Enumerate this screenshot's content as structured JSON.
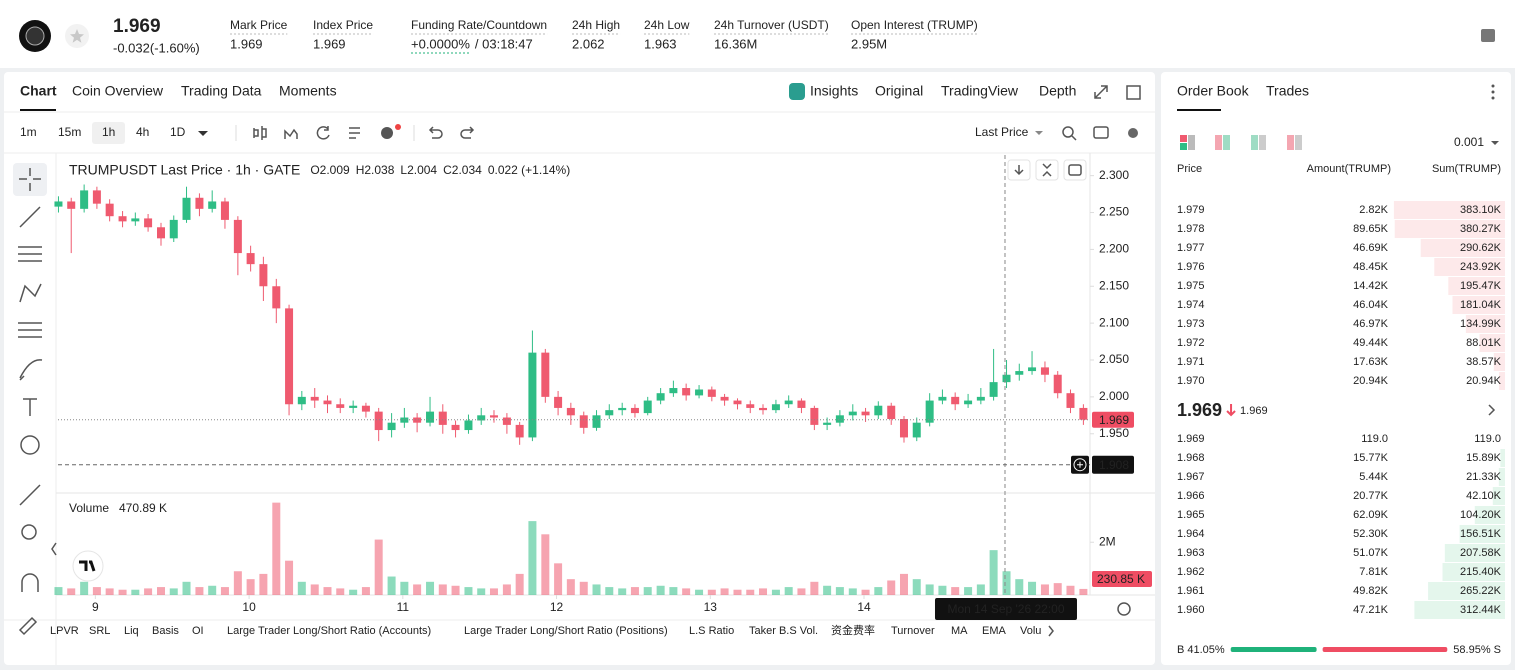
{
  "header": {
    "last_price": "1.969",
    "change": "-0.032(-1.60%)",
    "stats": [
      {
        "label": "Mark Price",
        "value": "1.969"
      },
      {
        "label": "Index Price",
        "value": "1.969"
      },
      {
        "label": "Funding Rate/Countdown",
        "value": "+0.0000%",
        "countdown": "/ 03:18:47"
      },
      {
        "label": "24h High",
        "value": "2.062"
      },
      {
        "label": "24h Low",
        "value": "1.963"
      },
      {
        "label": "24h Turnover (USDT)",
        "value": "16.36M"
      },
      {
        "label": "Open Interest (TRUMP)",
        "value": "2.95M"
      }
    ]
  },
  "tabs": [
    "Chart",
    "Coin Overview",
    "Trading Data",
    "Moments"
  ],
  "view_tabs": [
    "Insights",
    "Original",
    "TradingView",
    "Depth"
  ],
  "intervals": [
    "1m",
    "15m",
    "1h",
    "4h",
    "1D"
  ],
  "price_source": "Last Price",
  "indicators": [
    "LPVR",
    "SRL",
    "Liq",
    "Basis",
    "OI",
    "Large Trader Long/Short Ratio (Accounts)",
    "Large Trader Long/Short Ratio (Positions)",
    "L.S Ratio",
    "Taker B.S Vol.",
    "资金费率",
    "Turnover",
    "MA",
    "EMA",
    "Volu"
  ],
  "chart_data": {
    "type": "candlestick",
    "title": "TRUMPUSDT Last Price · 1h · GATE",
    "legend": [
      {
        "key": "O",
        "value": "2.009"
      },
      {
        "key": "H",
        "value": "2.038"
      },
      {
        "key": "L",
        "value": "2.004"
      },
      {
        "key": "C",
        "value": "2.034"
      }
    ],
    "legend_change": "0.022 (+1.14%)",
    "up_color": "#2ebd85",
    "down_color": "#ef5a6f",
    "x": [
      8.76,
      8.843,
      8.927,
      9.01,
      9.093,
      9.177,
      9.26,
      9.343,
      9.427,
      9.51,
      9.593,
      9.677,
      9.76,
      9.843,
      9.927,
      10.01,
      10.093,
      10.177,
      10.26,
      10.343,
      10.427,
      10.51,
      10.593,
      10.677,
      10.76,
      10.843,
      10.927,
      11.01,
      11.093,
      11.177,
      11.26,
      11.343,
      11.427,
      11.51,
      11.593,
      11.677,
      11.76,
      11.843,
      11.927,
      12.01,
      12.093,
      12.177,
      12.26,
      12.343,
      12.427,
      12.51,
      12.593,
      12.677,
      12.76,
      12.843,
      12.927,
      13.01,
      13.093,
      13.177,
      13.26,
      13.343,
      13.427,
      13.51,
      13.593,
      13.677,
      13.76,
      13.843,
      13.927,
      14.01,
      14.093,
      14.177,
      14.26,
      14.343,
      14.427,
      14.51,
      14.593,
      14.677,
      14.76,
      14.843,
      14.927,
      15.01,
      15.093,
      15.177,
      15.26,
      15.343,
      15.427
    ],
    "open": [
      2.258,
      2.265,
      2.255,
      2.28,
      2.262,
      2.245,
      2.238,
      2.242,
      2.23,
      2.215,
      2.24,
      2.27,
      2.255,
      2.265,
      2.24,
      2.195,
      2.18,
      2.15,
      2.12,
      1.99,
      2.0,
      1.995,
      1.99,
      1.985,
      1.988,
      1.98,
      1.955,
      1.965,
      1.972,
      1.965,
      1.98,
      1.962,
      1.955,
      1.968,
      1.975,
      1.972,
      1.962,
      1.945,
      2.06,
      2.0,
      1.985,
      1.975,
      1.958,
      1.975,
      1.982,
      1.985,
      1.978,
      1.995,
      2.005,
      2.012,
      2.002,
      2.01,
      2.0,
      1.995,
      1.99,
      1.985,
      1.982,
      1.99,
      1.995,
      1.985,
      1.962,
      1.965,
      1.975,
      1.98,
      1.975,
      1.988,
      1.97,
      1.945,
      1.965,
      1.995,
      2.0,
      1.99,
      1.995,
      2.0,
      2.02,
      2.03,
      2.035,
      2.04,
      2.03,
      2.005,
      1.985
    ],
    "high": [
      2.272,
      2.27,
      2.288,
      2.285,
      2.268,
      2.252,
      2.25,
      2.248,
      2.236,
      2.246,
      2.285,
      2.276,
      2.28,
      2.27,
      2.245,
      2.205,
      2.19,
      2.16,
      2.125,
      2.008,
      2.012,
      2.002,
      1.998,
      1.995,
      1.992,
      1.985,
      1.978,
      1.985,
      1.978,
      2.0,
      1.99,
      1.968,
      1.976,
      1.985,
      1.982,
      1.978,
      1.966,
      2.09,
      2.065,
      2.008,
      1.992,
      1.98,
      1.982,
      1.99,
      1.992,
      1.99,
      2.0,
      2.012,
      2.022,
      2.018,
      2.016,
      2.014,
      2.004,
      1.998,
      1.995,
      1.99,
      1.996,
      2.002,
      1.998,
      1.988,
      1.972,
      1.982,
      1.99,
      1.985,
      1.994,
      1.992,
      1.974,
      1.972,
      2.005,
      2.01,
      2.006,
      2.004,
      2.012,
      2.065,
      2.05,
      2.045,
      2.062,
      2.048,
      2.035,
      2.01,
      1.99
    ],
    "low": [
      2.25,
      2.195,
      2.25,
      2.255,
      2.238,
      2.23,
      2.232,
      2.224,
      2.205,
      2.21,
      2.236,
      2.245,
      2.25,
      2.228,
      2.165,
      2.17,
      2.13,
      2.1,
      1.975,
      1.982,
      1.985,
      1.978,
      1.978,
      1.978,
      1.972,
      1.94,
      1.945,
      1.958,
      1.952,
      1.96,
      1.95,
      1.945,
      1.95,
      1.962,
      1.965,
      1.95,
      1.935,
      1.94,
      1.992,
      1.975,
      1.962,
      1.95,
      1.954,
      1.97,
      1.975,
      1.972,
      1.975,
      1.99,
      2.0,
      1.995,
      1.998,
      1.994,
      1.988,
      1.983,
      1.978,
      1.976,
      1.978,
      1.985,
      1.978,
      1.955,
      1.955,
      1.96,
      1.968,
      1.966,
      1.97,
      1.962,
      1.938,
      1.94,
      1.96,
      1.99,
      1.982,
      1.985,
      1.99,
      1.995,
      2.012,
      2.022,
      2.03,
      2.02,
      1.998,
      1.978,
      1.962
    ],
    "close": [
      2.265,
      2.255,
      2.28,
      2.262,
      2.245,
      2.238,
      2.242,
      2.23,
      2.215,
      2.24,
      2.27,
      2.255,
      2.265,
      2.24,
      2.195,
      2.18,
      2.15,
      2.12,
      1.99,
      2.0,
      1.995,
      1.99,
      1.985,
      1.988,
      1.98,
      1.955,
      1.965,
      1.972,
      1.965,
      1.98,
      1.962,
      1.955,
      1.968,
      1.975,
      1.972,
      1.962,
      1.945,
      2.06,
      2.0,
      1.985,
      1.975,
      1.958,
      1.975,
      1.982,
      1.985,
      1.978,
      1.995,
      2.005,
      2.012,
      2.002,
      2.01,
      2.0,
      1.995,
      1.99,
      1.985,
      1.982,
      1.99,
      1.995,
      1.985,
      1.962,
      1.965,
      1.975,
      1.98,
      1.975,
      1.988,
      1.97,
      1.945,
      1.965,
      1.995,
      2.0,
      1.99,
      1.995,
      2.0,
      2.02,
      2.03,
      2.035,
      2.04,
      2.03,
      2.005,
      1.985,
      1.969
    ],
    "xlim": [
      8.757,
      15.47
    ],
    "xticks": [
      9,
      10,
      11,
      12,
      13,
      14
    ],
    "ylim": [
      1.871,
      2.328
    ],
    "yticks": [
      {
        "value": 1.95,
        "label": "1.950"
      },
      {
        "value": 2.0,
        "label": "2.000"
      },
      {
        "value": 2.05,
        "label": "2.050"
      },
      {
        "value": 2.1,
        "label": "2.100"
      },
      {
        "value": 2.15,
        "label": "2.150"
      },
      {
        "value": 2.2,
        "label": "2.200"
      },
      {
        "value": 2.25,
        "label": "2.250"
      },
      {
        "value": 2.3,
        "label": "2.300"
      }
    ],
    "last_price": 1.969,
    "crosshair": {
      "x": 14.917,
      "x_label": "Mon 14 Sep '26  22:00",
      "y": 1.908
    },
    "volume": {
      "title": "Volume",
      "current": "470.89 K",
      "values": [
        0.3,
        0.25,
        0.5,
        0.3,
        0.25,
        0.2,
        0.2,
        0.25,
        0.3,
        0.25,
        0.5,
        0.3,
        0.35,
        0.3,
        0.9,
        0.6,
        0.8,
        3.5,
        1.3,
        0.5,
        0.4,
        0.3,
        0.25,
        0.2,
        0.3,
        2.1,
        0.7,
        0.5,
        0.4,
        0.5,
        0.4,
        0.35,
        0.3,
        0.25,
        0.25,
        0.4,
        0.8,
        2.8,
        2.3,
        1.2,
        0.6,
        0.5,
        0.4,
        0.3,
        0.25,
        0.3,
        0.3,
        0.35,
        0.3,
        0.25,
        0.2,
        0.2,
        0.25,
        0.2,
        0.2,
        0.25,
        0.2,
        0.3,
        0.25,
        0.5,
        0.35,
        0.3,
        0.25,
        0.2,
        0.3,
        0.55,
        0.8,
        0.6,
        0.4,
        0.35,
        0.3,
        0.3,
        0.4,
        1.7,
        0.9,
        0.6,
        0.5,
        0.4,
        0.45,
        0.35,
        0.23
      ],
      "ylim": [
        0,
        3.6
      ],
      "yticks": [
        {
          "value": 2,
          "label": "2M"
        }
      ],
      "last_label": {
        "value": 0.23085,
        "label": "230.85 K"
      }
    }
  },
  "order_book": {
    "tabs": [
      "Order Book",
      "Trades"
    ],
    "precision": "0.001",
    "columns": [
      "Price",
      "Amount(TRUMP)",
      "Sum(TRUMP)"
    ],
    "asks": {
      "price": [
        "1.979",
        "1.978",
        "1.977",
        "1.976",
        "1.975",
        "1.974",
        "1.973",
        "1.972",
        "1.971",
        "1.970"
      ],
      "amount": [
        "2.82K",
        "89.65K",
        "46.69K",
        "48.45K",
        "14.42K",
        "46.04K",
        "46.97K",
        "49.44K",
        "17.63K",
        "20.94K"
      ],
      "sum": [
        383.1,
        380.27,
        290.62,
        243.92,
        195.47,
        181.04,
        134.99,
        88.01,
        38.57,
        20.94
      ],
      "sum_labels": [
        "383.10K",
        "380.27K",
        "290.62K",
        "243.92K",
        "195.47K",
        "181.04K",
        "134.99K",
        "88.01K",
        "38.57K",
        "20.94K"
      ]
    },
    "mid_price": "1.969",
    "mark_price": "1.969",
    "bids": {
      "price": [
        "1.969",
        "1.968",
        "1.967",
        "1.966",
        "1.965",
        "1.964",
        "1.963",
        "1.962",
        "1.961",
        "1.960"
      ],
      "amount": [
        "119.0",
        "15.77K",
        "5.44K",
        "20.77K",
        "62.09K",
        "52.30K",
        "51.07K",
        "7.81K",
        "49.82K",
        "47.21K"
      ],
      "sum": [
        0.119,
        15.89,
        21.33,
        42.1,
        104.2,
        156.51,
        207.58,
        215.4,
        265.22,
        312.44
      ],
      "sum_labels": [
        "119.0",
        "15.89K",
        "21.33K",
        "42.10K",
        "104.20K",
        "156.51K",
        "207.58K",
        "215.40K",
        "265.22K",
        "312.44K"
      ]
    },
    "buy_ratio": {
      "value": 41.05,
      "label": "B 41.05%"
    },
    "sell_ratio": {
      "value": 58.95,
      "label": "58.95% S"
    }
  }
}
